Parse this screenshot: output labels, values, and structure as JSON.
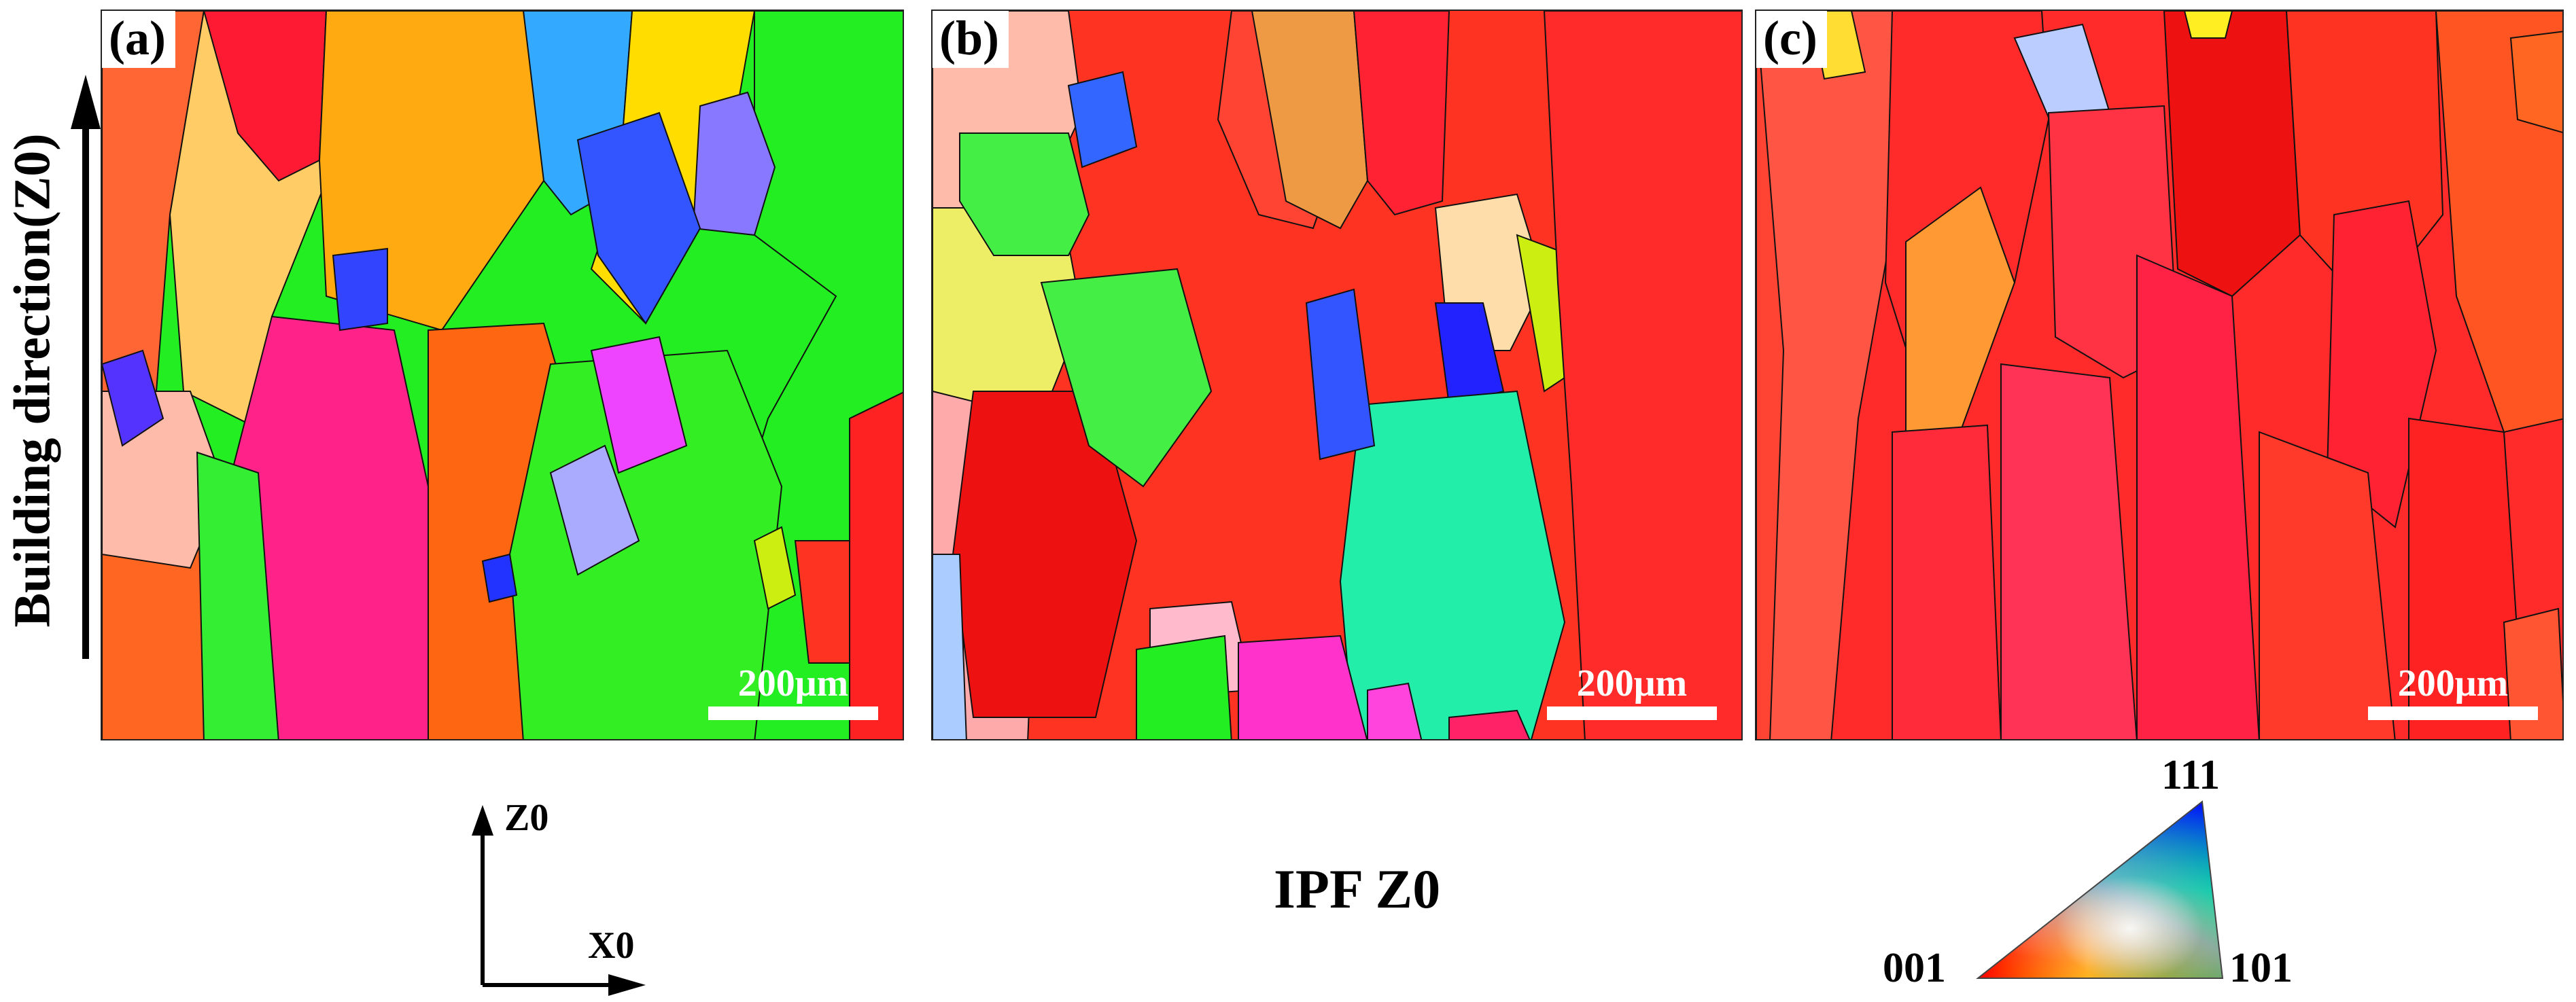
{
  "panels": [
    {
      "label": "(a)",
      "scale_bar": "200μm"
    },
    {
      "label": "(b)",
      "scale_bar": "200μm"
    },
    {
      "label": "(c)",
      "scale_bar": "200μm"
    }
  ],
  "building_direction_label": "Building direction(Z0)",
  "axes": {
    "vertical_label": "Z0",
    "horizontal_label": "X0"
  },
  "ipf_title": "IPF Z0",
  "ipf_legend": {
    "top": "111",
    "left": "001",
    "right": "101"
  },
  "colors": {
    "red_001": "#ff1a1a",
    "green_101": "#22ee22",
    "blue_111": "#2222ff"
  }
}
